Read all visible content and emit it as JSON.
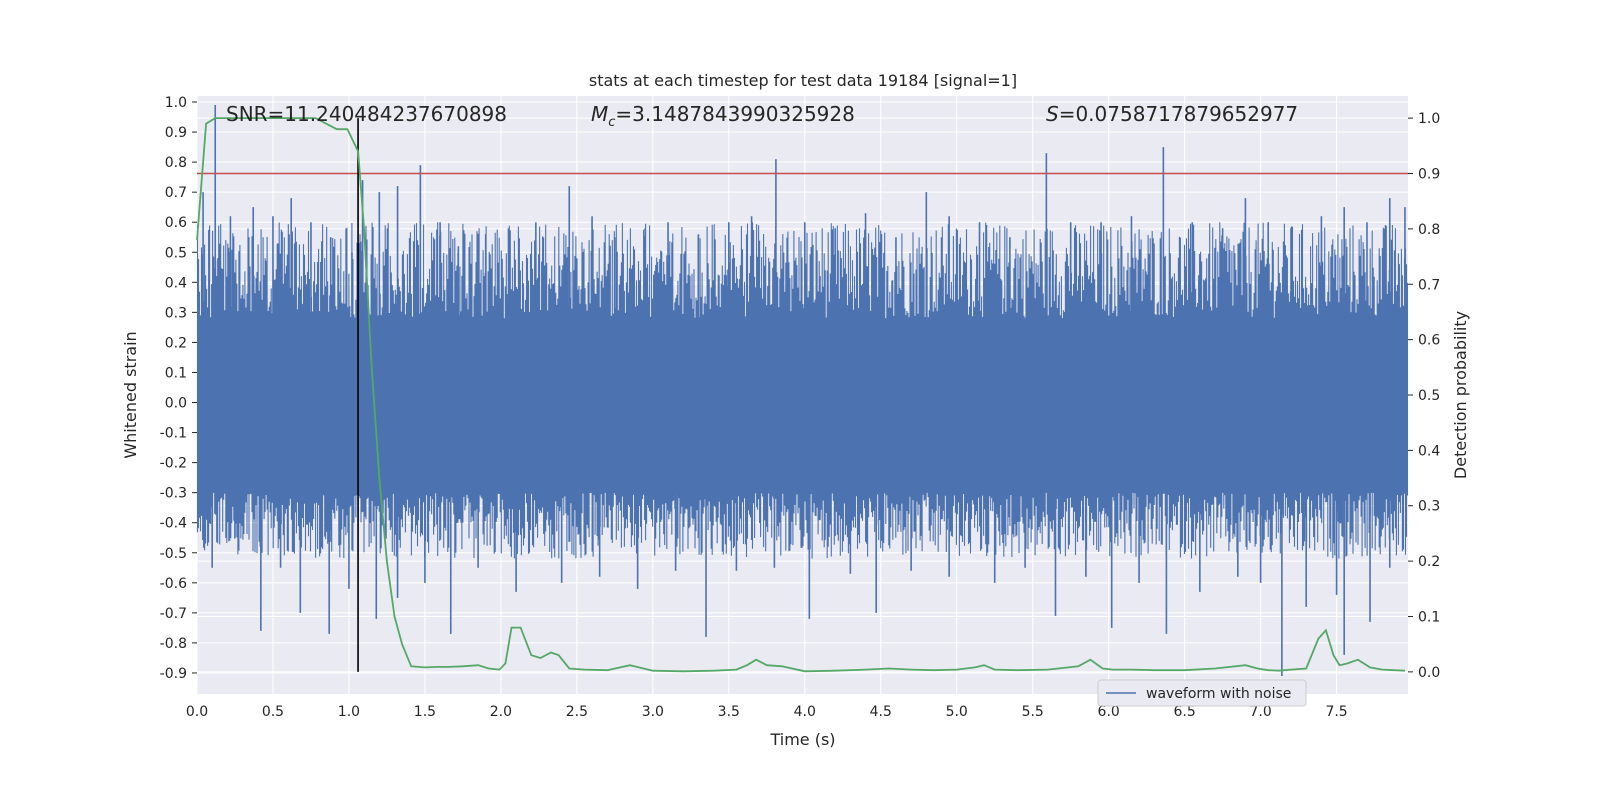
{
  "chart_data": {
    "type": "line",
    "title": "stats at each timestep for test data 19184 [signal=1]",
    "xlabel": "Time (s)",
    "ylabel": "Whitened strain",
    "y2label": "Detection probability",
    "xlim": [
      0.0,
      7.97
    ],
    "ylim": [
      -0.97,
      1.02
    ],
    "y2lim": [
      -0.04,
      1.04
    ],
    "x_ticks": [
      0.0,
      0.5,
      1.0,
      1.5,
      2.0,
      2.5,
      3.0,
      3.5,
      4.0,
      4.5,
      5.0,
      5.5,
      6.0,
      6.5,
      7.0,
      7.5
    ],
    "x_tick_labels": [
      "0.0",
      "0.5",
      "1.0",
      "1.5",
      "2.0",
      "2.5",
      "3.0",
      "3.5",
      "4.0",
      "4.5",
      "5.0",
      "5.5",
      "6.0",
      "6.5",
      "7.0",
      "7.5"
    ],
    "y_ticks": [
      1.0,
      0.9,
      0.8,
      0.7,
      0.6,
      0.5,
      0.4,
      0.3,
      0.2,
      0.1,
      0.0,
      -0.1,
      -0.2,
      -0.3,
      -0.4,
      -0.5,
      -0.6,
      -0.7,
      -0.8,
      -0.9
    ],
    "y_tick_labels": [
      "1.0",
      "0.9",
      "0.8",
      "0.7",
      "0.6",
      "0.5",
      "0.4",
      "0.3",
      "0.2",
      "0.1",
      "0.0",
      "-0.1",
      "-0.2",
      "-0.3",
      "-0.4",
      "-0.5",
      "-0.6",
      "-0.7",
      "-0.8",
      "-0.9"
    ],
    "y2_ticks": [
      1.0,
      0.9,
      0.8,
      0.7,
      0.6,
      0.5,
      0.4,
      0.3,
      0.2,
      0.1,
      0.0
    ],
    "y2_tick_labels": [
      "1.0",
      "0.9",
      "0.8",
      "0.7",
      "0.6",
      "0.5",
      "0.4",
      "0.3",
      "0.2",
      "0.1",
      "0.0"
    ],
    "grid": true,
    "legend": {
      "position": "lower-right",
      "entries": [
        "waveform with noise"
      ]
    },
    "annotations": {
      "snr": "SNR=11.240484237670898",
      "mc_symbol": "M",
      "mc_sub": "c",
      "mc_value": "=3.1487843990325928",
      "s_symbol": "S",
      "s_value": "=0.0758717879652977"
    },
    "threshold_y2": 0.9,
    "event_line_x": 1.06,
    "event_line_y2_range": [
      0.0,
      1.0
    ],
    "waveform": {
      "name": "waveform with noise",
      "color": "#4c72b0",
      "band_upper": 0.28,
      "band_lower": -0.3,
      "peaks_up": [
        [
          0.12,
          0.99
        ],
        [
          0.04,
          0.7
        ],
        [
          0.22,
          0.62
        ],
        [
          0.37,
          0.65
        ],
        [
          0.5,
          0.62
        ],
        [
          0.62,
          0.68
        ],
        [
          0.75,
          0.6
        ],
        [
          0.88,
          0.55
        ],
        [
          1.02,
          0.5
        ],
        [
          1.09,
          0.74
        ],
        [
          1.2,
          0.7
        ],
        [
          1.32,
          0.72
        ],
        [
          1.47,
          0.79
        ],
        [
          1.6,
          0.6
        ],
        [
          1.72,
          0.52
        ],
        [
          1.9,
          0.56
        ],
        [
          2.05,
          0.58
        ],
        [
          2.23,
          0.6
        ],
        [
          2.45,
          0.72
        ],
        [
          2.6,
          0.62
        ],
        [
          2.75,
          0.55
        ],
        [
          2.95,
          0.58
        ],
        [
          3.1,
          0.6
        ],
        [
          3.3,
          0.56
        ],
        [
          3.5,
          0.6
        ],
        [
          3.65,
          0.62
        ],
        [
          3.81,
          0.81
        ],
        [
          4.0,
          0.6
        ],
        [
          4.2,
          0.58
        ],
        [
          4.4,
          0.63
        ],
        [
          4.6,
          0.55
        ],
        [
          4.8,
          0.7
        ],
        [
          4.95,
          0.62
        ],
        [
          5.15,
          0.6
        ],
        [
          5.35,
          0.55
        ],
        [
          5.59,
          0.83
        ],
        [
          5.75,
          0.6
        ],
        [
          5.95,
          0.6
        ],
        [
          6.15,
          0.62
        ],
        [
          6.36,
          0.85
        ],
        [
          6.55,
          0.6
        ],
        [
          6.75,
          0.58
        ],
        [
          6.9,
          0.68
        ],
        [
          7.05,
          0.6
        ],
        [
          7.2,
          0.58
        ],
        [
          7.4,
          0.62
        ],
        [
          7.55,
          0.65
        ],
        [
          7.7,
          0.6
        ],
        [
          7.85,
          0.68
        ],
        [
          7.95,
          0.65
        ]
      ],
      "peaks_down": [
        [
          0.1,
          -0.55
        ],
        [
          0.25,
          -0.45
        ],
        [
          0.42,
          -0.76
        ],
        [
          0.55,
          -0.55
        ],
        [
          0.68,
          -0.7
        ],
        [
          0.87,
          -0.77
        ],
        [
          1.0,
          -0.62
        ],
        [
          1.18,
          -0.72
        ],
        [
          1.32,
          -0.65
        ],
        [
          1.5,
          -0.6
        ],
        [
          1.67,
          -0.77
        ],
        [
          1.85,
          -0.55
        ],
        [
          2.1,
          -0.63
        ],
        [
          2.4,
          -0.6
        ],
        [
          2.65,
          -0.58
        ],
        [
          2.9,
          -0.62
        ],
        [
          3.15,
          -0.56
        ],
        [
          3.35,
          -0.78
        ],
        [
          3.55,
          -0.56
        ],
        [
          3.8,
          -0.55
        ],
        [
          4.03,
          -0.72
        ],
        [
          4.3,
          -0.57
        ],
        [
          4.47,
          -0.7
        ],
        [
          4.7,
          -0.56
        ],
        [
          4.95,
          -0.58
        ],
        [
          5.25,
          -0.6
        ],
        [
          5.45,
          -0.55
        ],
        [
          5.65,
          -0.71
        ],
        [
          5.85,
          -0.58
        ],
        [
          6.02,
          -0.75
        ],
        [
          6.2,
          -0.6
        ],
        [
          6.38,
          -0.77
        ],
        [
          6.6,
          -0.63
        ],
        [
          6.85,
          -0.58
        ],
        [
          7.0,
          -0.6
        ],
        [
          7.14,
          -0.91
        ],
        [
          7.3,
          -0.68
        ],
        [
          7.5,
          -0.64
        ],
        [
          7.55,
          -0.84
        ],
        [
          7.72,
          -0.73
        ],
        [
          7.85,
          -0.55
        ]
      ]
    },
    "probability": {
      "name": "Detection probability",
      "color": "#55a868",
      "x": [
        0.0,
        0.06,
        0.12,
        0.2,
        0.3,
        0.4,
        0.5,
        0.6,
        0.7,
        0.78,
        0.85,
        0.92,
        0.99,
        1.06,
        1.1,
        1.15,
        1.2,
        1.25,
        1.3,
        1.35,
        1.41,
        1.5,
        1.58,
        1.66,
        1.75,
        1.85,
        1.92,
        1.99,
        2.03,
        2.07,
        2.13,
        2.2,
        2.26,
        2.33,
        2.38,
        2.45,
        2.55,
        2.7,
        2.85,
        3.0,
        3.2,
        3.4,
        3.55,
        3.62,
        3.68,
        3.75,
        3.85,
        4.0,
        4.2,
        4.4,
        4.55,
        4.7,
        4.85,
        5.0,
        5.12,
        5.18,
        5.25,
        5.4,
        5.6,
        5.8,
        5.88,
        5.96,
        6.03,
        6.15,
        6.3,
        6.5,
        6.7,
        6.9,
        6.98,
        7.05,
        7.12,
        7.2,
        7.3,
        7.38,
        7.43,
        7.48,
        7.52,
        7.57,
        7.64,
        7.72,
        7.8,
        7.88,
        7.95
      ],
      "y": [
        0.78,
        0.99,
        1.0,
        1.0,
        1.0,
        1.0,
        1.0,
        1.0,
        1.0,
        1.0,
        0.99,
        0.98,
        0.98,
        0.94,
        0.8,
        0.55,
        0.35,
        0.2,
        0.1,
        0.05,
        0.01,
        0.008,
        0.009,
        0.009,
        0.01,
        0.012,
        0.006,
        0.004,
        0.015,
        0.08,
        0.08,
        0.03,
        0.025,
        0.035,
        0.03,
        0.006,
        0.004,
        0.003,
        0.012,
        0.002,
        0.001,
        0.002,
        0.004,
        0.012,
        0.022,
        0.012,
        0.01,
        0.001,
        0.002,
        0.004,
        0.006,
        0.004,
        0.003,
        0.004,
        0.008,
        0.012,
        0.004,
        0.003,
        0.004,
        0.01,
        0.022,
        0.006,
        0.004,
        0.004,
        0.003,
        0.003,
        0.006,
        0.012,
        0.006,
        0.003,
        0.002,
        0.004,
        0.006,
        0.06,
        0.075,
        0.03,
        0.012,
        0.015,
        0.022,
        0.008,
        0.004,
        0.003,
        0.002
      ]
    }
  },
  "colors": {
    "axes_bg": "#eaeaf2",
    "grid": "#ffffff",
    "waveform": "#4c72b0",
    "probability": "#55a868",
    "threshold": "#c44e52",
    "event_line": "#000000"
  }
}
